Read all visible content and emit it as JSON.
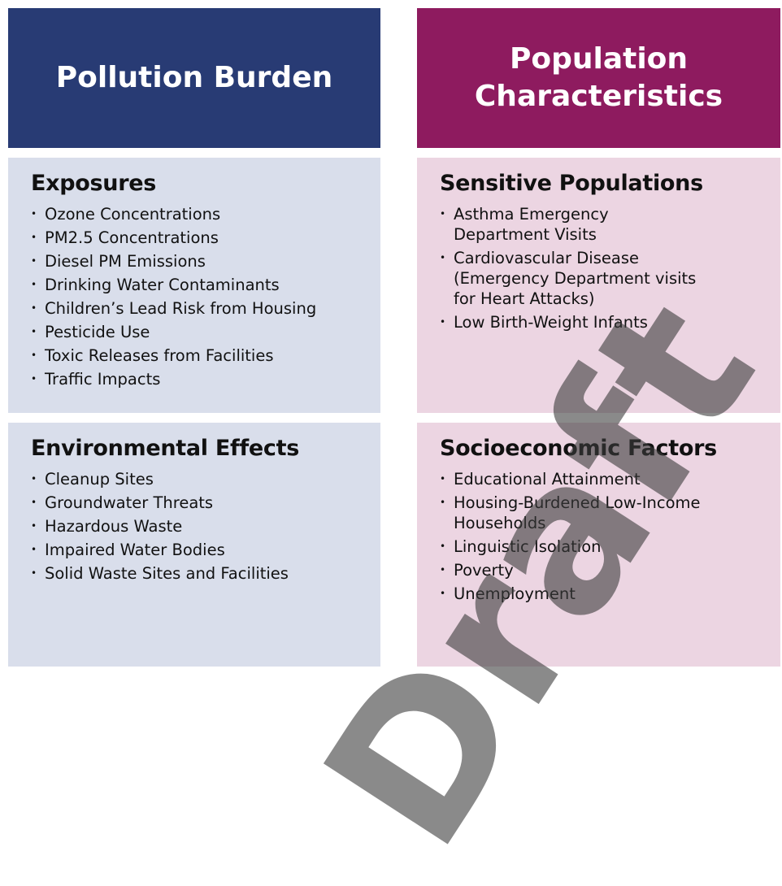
{
  "columns": [
    {
      "title": "Pollution Burden",
      "sections": [
        {
          "title": "Exposures",
          "items": [
            [
              "Ozone Concentrations"
            ],
            [
              "PM2.5 Concentrations"
            ],
            [
              "Diesel PM Emissions"
            ],
            [
              "Drinking Water Contaminants"
            ],
            [
              "Children’s Lead Risk from Housing"
            ],
            [
              "Pesticide Use"
            ],
            [
              "Toxic Releases from Facilities"
            ],
            [
              "Traffic Impacts"
            ]
          ]
        },
        {
          "title": "Environmental Effects",
          "items": [
            [
              "Cleanup Sites"
            ],
            [
              "Groundwater Threats"
            ],
            [
              "Hazardous Waste"
            ],
            [
              "Impaired Water Bodies"
            ],
            [
              "Solid Waste Sites and Facilities"
            ]
          ]
        }
      ]
    },
    {
      "title": "Population Characteristics",
      "sections": [
        {
          "title": "Sensitive Populations",
          "items": [
            [
              "Asthma Emergency",
              "Department Visits"
            ],
            [
              "Cardiovascular Disease",
              "(Emergency Department visits",
              "for Heart Attacks)"
            ],
            [
              "Low Birth-Weight Infants"
            ]
          ]
        },
        {
          "title": "Socioeconomic Factors",
          "items": [
            [
              "Educational Attainment"
            ],
            [
              "Housing-Burdened Low-Income",
              "Households"
            ],
            [
              "Linguistic Isolation"
            ],
            [
              "Poverty"
            ],
            [
              "Unemployment"
            ]
          ]
        }
      ]
    }
  ],
  "watermark": "Draft"
}
